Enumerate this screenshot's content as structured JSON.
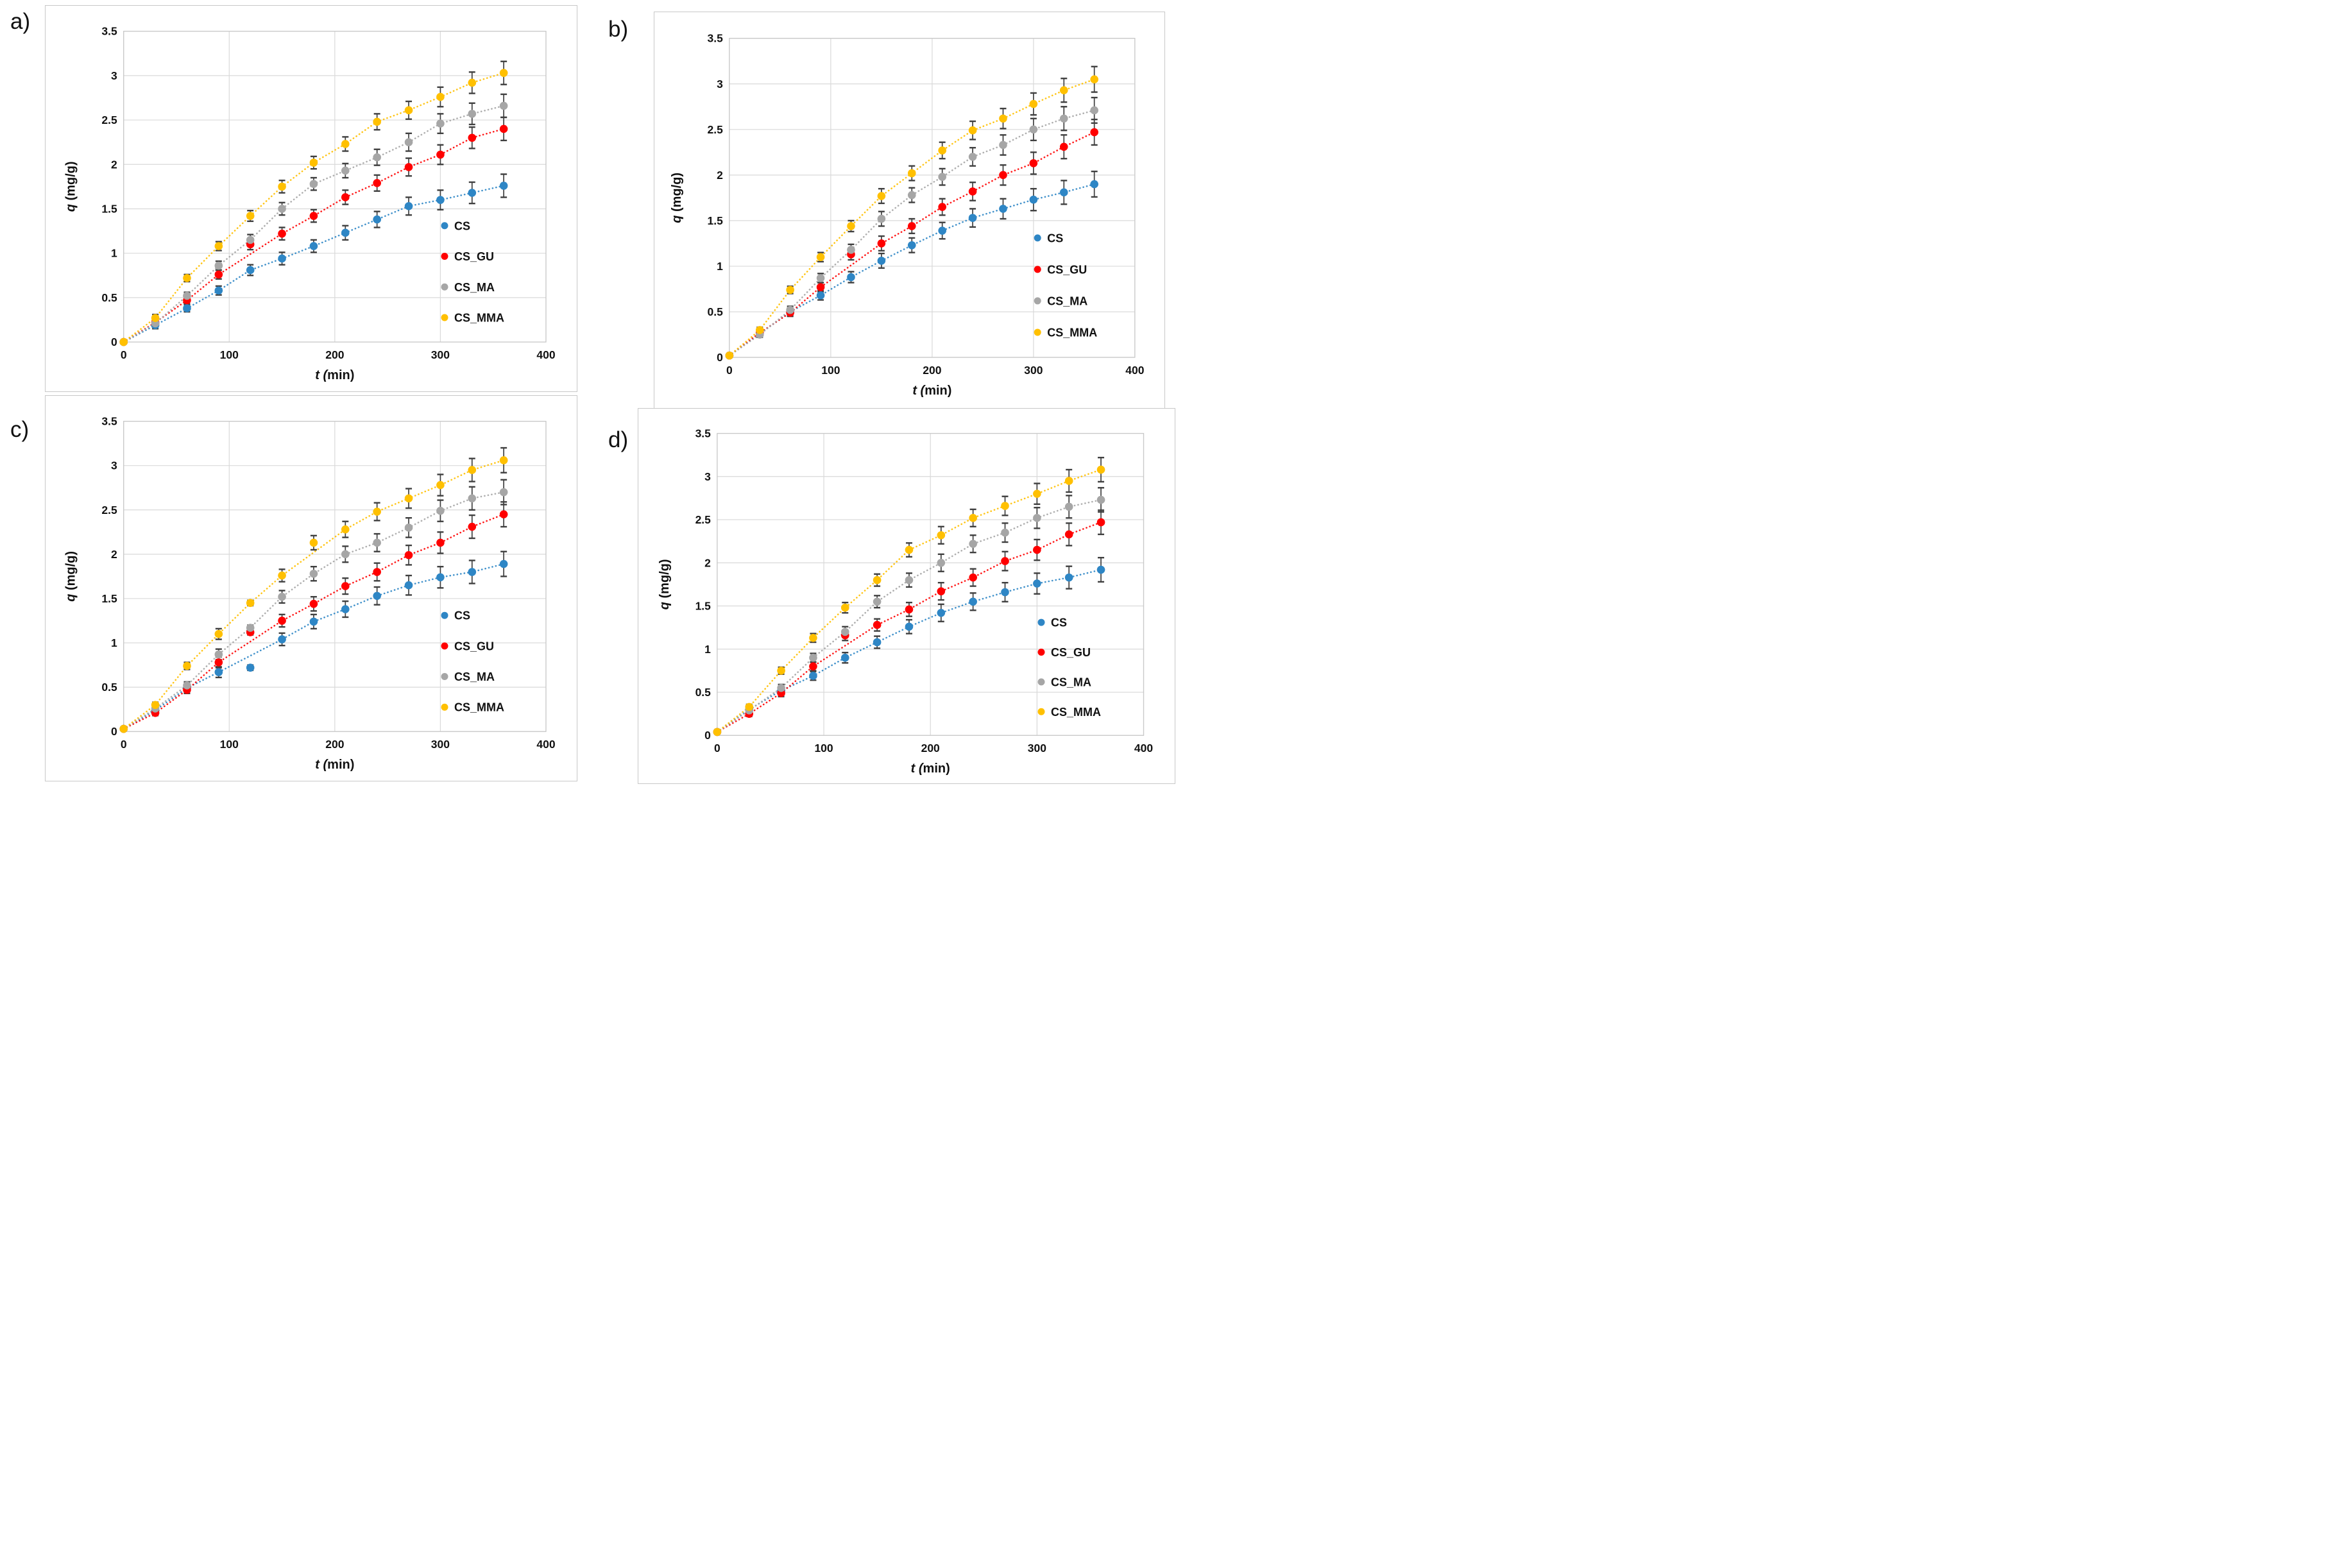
{
  "figure": {
    "description": "Four-panel adsorption kinetics figure: q (mg/g) versus t (min) for CS, CS_GU, CS_MA and CS_MMA samples with error bars and dotted trendlines",
    "panel_letters": [
      "a)",
      "b)",
      "c)",
      "d)"
    ]
  },
  "style": {
    "series_colors": {
      "CS": "#2E86C5",
      "CS_GU": "#FF0000",
      "CS_MA": "#A6A6A6",
      "CS_MMA": "#FFC000"
    },
    "error_bar_color": "#3F3F3F",
    "grid_color": "#D9D9D9",
    "plot_border_color": "#C9C9C9",
    "panel_border_color": "#C8C8C8",
    "text_color": "#111111"
  },
  "chart_data": [
    {
      "panel_label": "a)",
      "type": "scatter",
      "xlabel_italic": "t (",
      "xlabel_rest": "min)",
      "ylabel_italic": "q",
      "ylabel_rest": " (mg/g)",
      "xlim": [
        0,
        400
      ],
      "ylim": [
        0,
        3.5
      ],
      "xticks": [
        0,
        100,
        200,
        300,
        400
      ],
      "xtick_labels": [
        "0",
        "100",
        "200",
        "300",
        "400"
      ],
      "ytick_values": [
        0,
        0.5,
        1,
        1.5,
        2,
        2.5,
        3,
        3.5
      ],
      "ytick_labels": [
        "0",
        "0.5",
        "1",
        "1.5",
        "2",
        "2.5",
        "3",
        "3.5"
      ],
      "grid": true,
      "legend_position": "inside-right",
      "x": [
        0,
        30,
        60,
        90,
        120,
        150,
        180,
        210,
        240,
        270,
        300,
        330,
        360
      ],
      "errors": [
        0,
        0.04,
        0.04,
        0.05,
        0.06,
        0.07,
        0.07,
        0.08,
        0.09,
        0.1,
        0.11,
        0.12,
        0.13
      ],
      "series": [
        {
          "name": "CS",
          "values": [
            0.0,
            0.19,
            0.38,
            0.58,
            0.81,
            0.94,
            1.08,
            1.23,
            1.38,
            1.53,
            1.6,
            1.68,
            1.76
          ]
        },
        {
          "name": "CS_GU",
          "values": [
            0.0,
            0.22,
            0.47,
            0.76,
            1.1,
            1.22,
            1.42,
            1.63,
            1.79,
            1.97,
            2.11,
            2.3,
            2.4
          ]
        },
        {
          "name": "CS_MA",
          "values": [
            0.0,
            0.21,
            0.52,
            0.86,
            1.15,
            1.5,
            1.78,
            1.93,
            2.08,
            2.25,
            2.46,
            2.57,
            2.66
          ]
        },
        {
          "name": "CS_MMA",
          "values": [
            0.0,
            0.27,
            0.72,
            1.08,
            1.42,
            1.75,
            2.02,
            2.23,
            2.48,
            2.61,
            2.76,
            2.92,
            3.03
          ]
        }
      ]
    },
    {
      "panel_label": "b)",
      "type": "scatter",
      "xlabel_italic": "t (",
      "xlabel_rest": "min)",
      "ylabel_italic": "q",
      "ylabel_rest": " (mg/g)",
      "xlim": [
        0,
        400
      ],
      "ylim": [
        0,
        3.5
      ],
      "xticks": [
        0,
        100,
        200,
        300,
        400
      ],
      "xtick_labels": [
        "0",
        "100",
        "200",
        "300",
        "400"
      ],
      "ytick_values": [
        0,
        0.5,
        1,
        1.5,
        2,
        2.5,
        3,
        3.5
      ],
      "ytick_labels": [
        "0",
        "0.5",
        "1",
        "1.5",
        "2",
        "2.5",
        "3",
        "3.5"
      ],
      "grid": true,
      "legend_position": "inside-right",
      "x": [
        0,
        30,
        60,
        90,
        120,
        150,
        180,
        210,
        240,
        270,
        300,
        330,
        360
      ],
      "errors": [
        0,
        0.03,
        0.04,
        0.05,
        0.06,
        0.08,
        0.08,
        0.09,
        0.1,
        0.11,
        0.12,
        0.13,
        0.14
      ],
      "series": [
        {
          "name": "CS",
          "values": [
            0.02,
            0.26,
            0.5,
            0.68,
            0.88,
            1.06,
            1.23,
            1.39,
            1.53,
            1.63,
            1.73,
            1.81,
            1.9
          ]
        },
        {
          "name": "CS_GU",
          "values": [
            0.02,
            0.27,
            0.49,
            0.77,
            1.13,
            1.25,
            1.44,
            1.65,
            1.82,
            2.0,
            2.13,
            2.31,
            2.47
          ]
        },
        {
          "name": "CS_MA",
          "values": [
            0.02,
            0.25,
            0.52,
            0.87,
            1.18,
            1.52,
            1.78,
            1.98,
            2.2,
            2.33,
            2.5,
            2.62,
            2.71
          ]
        },
        {
          "name": "CS_MMA",
          "values": [
            0.02,
            0.3,
            0.74,
            1.1,
            1.44,
            1.77,
            2.02,
            2.27,
            2.49,
            2.62,
            2.78,
            2.93,
            3.05
          ]
        }
      ]
    },
    {
      "panel_label": "c)",
      "type": "scatter",
      "xlabel_italic": "t (",
      "xlabel_rest": "min)",
      "ylabel_italic": "q",
      "ylabel_rest": " (mg/g)",
      "xlim": [
        0,
        400
      ],
      "ylim": [
        0,
        3.5
      ],
      "xticks": [
        0,
        100,
        200,
        300,
        400
      ],
      "xtick_labels": [
        "0",
        "100",
        "200",
        "300",
        "400"
      ],
      "ytick_values": [
        0,
        0.5,
        1,
        1.5,
        2,
        2.5,
        3,
        3.5
      ],
      "ytick_labels": [
        "0",
        "0.5",
        "1",
        "1.5",
        "2",
        "2.5",
        "3",
        "3.5"
      ],
      "grid": true,
      "legend_position": "inside-right",
      "x": [
        0,
        30,
        60,
        90,
        120,
        150,
        180,
        210,
        240,
        270,
        300,
        330,
        360
      ],
      "errors": [
        0,
        0.03,
        0.04,
        0.06,
        0.03,
        0.07,
        0.08,
        0.09,
        0.1,
        0.11,
        0.12,
        0.13,
        0.14
      ],
      "series": [
        {
          "name": "CS",
          "values": [
            0.03,
            0.24,
            0.49,
            0.67,
            0.72,
            1.04,
            1.24,
            1.38,
            1.53,
            1.65,
            1.74,
            1.8,
            1.89
          ]
        },
        {
          "name": "CS_GU",
          "values": [
            0.03,
            0.21,
            0.47,
            0.78,
            1.12,
            1.25,
            1.44,
            1.64,
            1.8,
            1.99,
            2.13,
            2.31,
            2.45
          ]
        },
        {
          "name": "CS_MA",
          "values": [
            0.03,
            0.26,
            0.52,
            0.87,
            1.17,
            1.52,
            1.78,
            2.0,
            2.13,
            2.3,
            2.49,
            2.63,
            2.7
          ]
        },
        {
          "name": "CS_MMA",
          "values": [
            0.03,
            0.3,
            0.74,
            1.1,
            1.45,
            1.76,
            2.13,
            2.28,
            2.48,
            2.63,
            2.78,
            2.95,
            3.06
          ]
        }
      ]
    },
    {
      "panel_label": "d)",
      "type": "scatter",
      "xlabel_italic": "t (",
      "xlabel_rest": "min)",
      "ylabel_italic": "q",
      "ylabel_rest": " (mg/g)",
      "xlim": [
        0,
        400
      ],
      "ylim": [
        0,
        3.5
      ],
      "xticks": [
        0,
        100,
        200,
        300,
        400
      ],
      "xtick_labels": [
        "0",
        "100",
        "200",
        "300",
        "400"
      ],
      "ytick_values": [
        0,
        0.5,
        1,
        1.5,
        2,
        2.5,
        3,
        3.5
      ],
      "ytick_labels": [
        "0",
        "0.5",
        "1",
        "1.5",
        "2",
        "2.5",
        "3",
        "3.5"
      ],
      "grid": true,
      "legend_position": "inside-right",
      "x": [
        0,
        30,
        60,
        90,
        120,
        150,
        180,
        210,
        240,
        270,
        300,
        330,
        360
      ],
      "errors": [
        0,
        0.03,
        0.04,
        0.05,
        0.06,
        0.07,
        0.08,
        0.1,
        0.1,
        0.11,
        0.12,
        0.13,
        0.14
      ],
      "series": [
        {
          "name": "CS",
          "values": [
            0.04,
            0.3,
            0.52,
            0.69,
            0.9,
            1.08,
            1.26,
            1.42,
            1.55,
            1.66,
            1.76,
            1.83,
            1.92
          ]
        },
        {
          "name": "CS_GU",
          "values": [
            0.04,
            0.25,
            0.49,
            0.8,
            1.16,
            1.28,
            1.46,
            1.67,
            1.83,
            2.02,
            2.15,
            2.33,
            2.47
          ]
        },
        {
          "name": "CS_MA",
          "values": [
            0.04,
            0.29,
            0.55,
            0.9,
            1.2,
            1.55,
            1.8,
            2.0,
            2.22,
            2.35,
            2.52,
            2.65,
            2.73
          ]
        },
        {
          "name": "CS_MMA",
          "values": [
            0.04,
            0.33,
            0.75,
            1.13,
            1.48,
            1.8,
            2.15,
            2.32,
            2.52,
            2.66,
            2.8,
            2.95,
            3.08
          ]
        }
      ]
    }
  ]
}
